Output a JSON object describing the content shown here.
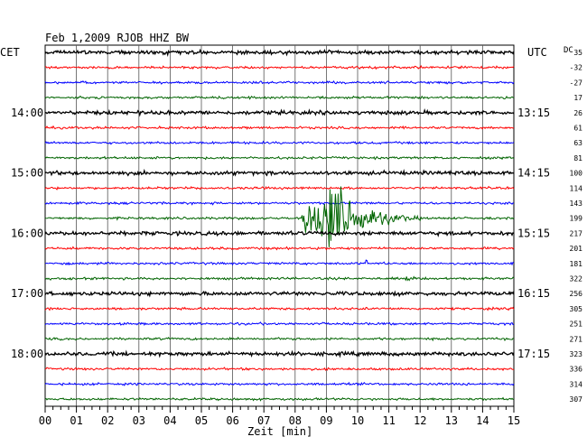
{
  "header": {
    "title": "Feb 1,2009   RJOB HHZ BW",
    "left_tz": "CET",
    "right_tz": "UTC",
    "dc_label": "DC"
  },
  "colors": {
    "trace_cycle": [
      "#000000",
      "#ff0000",
      "#0000ff",
      "#006400"
    ],
    "grid": "#000000",
    "background": "#ffffff"
  },
  "chart_data": {
    "type": "line",
    "title": "Feb 1,2009   RJOB HHZ BW",
    "xlabel": "Zeit [min]",
    "ylabel": "",
    "x_ticks": [
      "00",
      "01",
      "02",
      "03",
      "04",
      "05",
      "06",
      "07",
      "08",
      "09",
      "10",
      "11",
      "12",
      "13",
      "14",
      "15"
    ],
    "xlim": [
      0,
      15
    ],
    "minor_ticks_per_minute": 4,
    "grid": true,
    "rows": 24,
    "left_hour_labels": [
      {
        "row": 4,
        "label": "14:00"
      },
      {
        "row": 8,
        "label": "15:00"
      },
      {
        "row": 12,
        "label": "16:00"
      },
      {
        "row": 16,
        "label": "17:00"
      },
      {
        "row": 20,
        "label": "18:00"
      }
    ],
    "right_hour_labels": [
      {
        "row": 4,
        "label": "13:15"
      },
      {
        "row": 8,
        "label": "14:15"
      },
      {
        "row": 12,
        "label": "15:15"
      },
      {
        "row": 16,
        "label": "16:15"
      },
      {
        "row": 20,
        "label": "17:15"
      }
    ],
    "dc_offsets": [
      "35",
      "-32",
      "-27",
      "17",
      "26",
      "61",
      "63",
      "81",
      "100",
      "114",
      "143",
      "199",
      "217",
      "201",
      "181",
      "322",
      "256",
      "305",
      "251",
      "271",
      "323",
      "336",
      "314",
      "307"
    ],
    "events": [
      {
        "row": 11,
        "onset_min": 8.2,
        "peak_min": 9.3,
        "end_min": 12.0,
        "description": ""
      },
      {
        "row": 14,
        "onset_min": 10.2,
        "peak_min": 10.3,
        "end_min": 10.5,
        "description": ""
      },
      {
        "row": 15,
        "onset_min": 11.4,
        "peak_min": 11.7,
        "end_min": 12.1,
        "description": ""
      }
    ]
  }
}
